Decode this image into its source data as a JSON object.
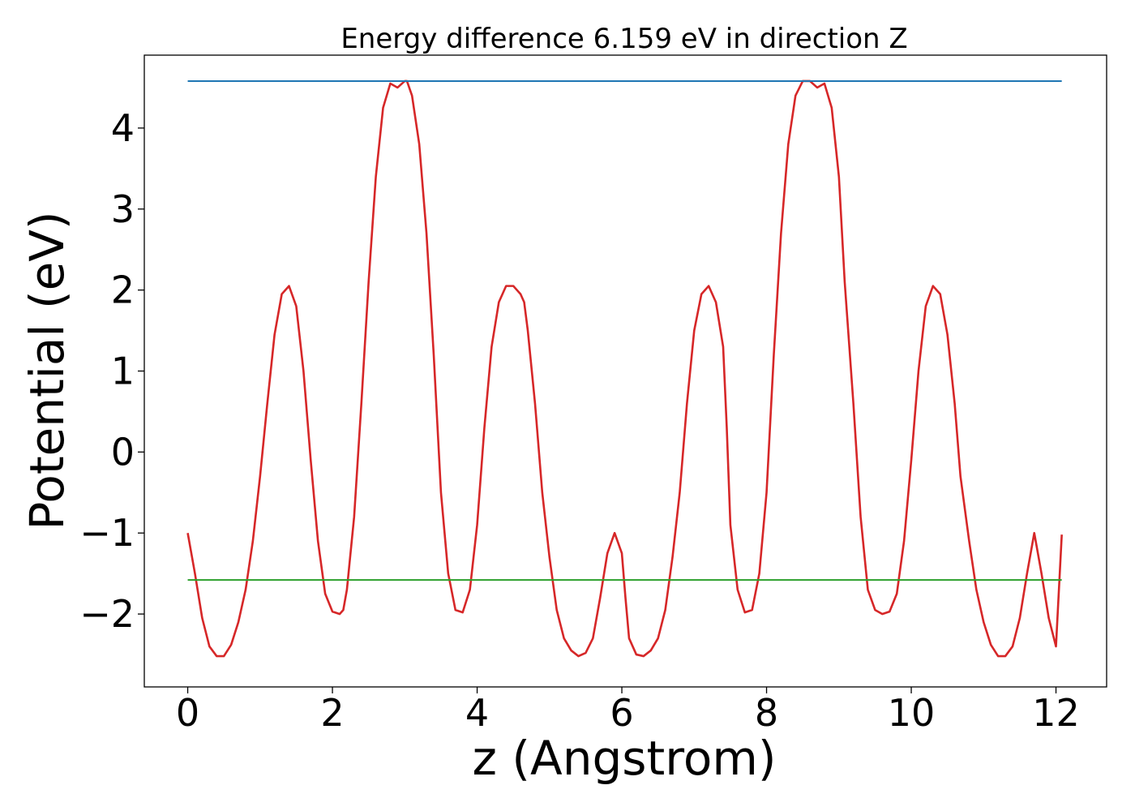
{
  "chart_data": {
    "type": "line",
    "title": "Energy difference 6.159 eV in direction Z",
    "xlabel": "z (Angstrom)",
    "ylabel": "Potential (eV)",
    "xlim": [
      -0.6,
      12.7
    ],
    "ylim": [
      -2.9,
      4.9
    ],
    "xticks": [
      0,
      2,
      4,
      6,
      8,
      10,
      12
    ],
    "xtick_labels": [
      "0",
      "2",
      "4",
      "6",
      "8",
      "10",
      "12"
    ],
    "yticks": [
      -2,
      -1,
      0,
      1,
      2,
      3,
      4
    ],
    "ytick_labels": [
      "−2",
      "−1",
      "0",
      "1",
      "2",
      "3",
      "4"
    ],
    "grid": false,
    "series": [
      {
        "color": "#d62728",
        "x": [
          0.0,
          0.1,
          0.2,
          0.3,
          0.4,
          0.5,
          0.6,
          0.7,
          0.8,
          0.9,
          1.0,
          1.1,
          1.2,
          1.3,
          1.4,
          1.5,
          1.6,
          1.7,
          1.8,
          1.9,
          2.0,
          2.1,
          2.15,
          2.2,
          2.3,
          2.4,
          2.5,
          2.6,
          2.7,
          2.8,
          2.9,
          3.0,
          3.03,
          3.1,
          3.2,
          3.3,
          3.4,
          3.5,
          3.6,
          3.7,
          3.8,
          3.9,
          4.0,
          4.1,
          4.2,
          4.3,
          4.4,
          4.5,
          4.6,
          4.65,
          4.7,
          4.8,
          4.9,
          5.0,
          5.1,
          5.2,
          5.3,
          5.4,
          5.5,
          5.6,
          5.7,
          5.8,
          5.9,
          6.0,
          6.05,
          6.1,
          6.2,
          6.3,
          6.4,
          6.5,
          6.6,
          6.7,
          6.8,
          6.9,
          7.0,
          7.1,
          7.2,
          7.3,
          7.4,
          7.45,
          7.5,
          7.6,
          7.7,
          7.8,
          7.9,
          8.0,
          8.1,
          8.2,
          8.3,
          8.4,
          8.5,
          8.6,
          8.7,
          8.8,
          8.9,
          9.0,
          9.08,
          9.2,
          9.3,
          9.4,
          9.5,
          9.6,
          9.7,
          9.8,
          9.9,
          10.0,
          10.1,
          10.2,
          10.3,
          10.4,
          10.5,
          10.6,
          10.68,
          10.8,
          10.9,
          11.0,
          11.1,
          11.2,
          11.3,
          11.4,
          11.5,
          11.6,
          11.7,
          11.8,
          11.9,
          12.0,
          12.08
        ],
        "y": [
          -1.0,
          -1.5,
          -2.05,
          -2.4,
          -2.52,
          -2.52,
          -2.38,
          -2.1,
          -1.7,
          -1.1,
          -0.3,
          0.6,
          1.45,
          1.95,
          2.05,
          1.8,
          1.0,
          -0.1,
          -1.1,
          -1.75,
          -1.97,
          -2.0,
          -1.95,
          -1.7,
          -0.8,
          0.6,
          2.1,
          3.4,
          4.25,
          4.55,
          4.5,
          4.58,
          4.58,
          4.4,
          3.8,
          2.7,
          1.2,
          -0.5,
          -1.5,
          -1.95,
          -1.98,
          -1.7,
          -0.9,
          0.3,
          1.3,
          1.85,
          2.05,
          2.05,
          1.95,
          1.85,
          1.5,
          0.6,
          -0.5,
          -1.3,
          -1.95,
          -2.3,
          -2.45,
          -2.52,
          -2.48,
          -2.3,
          -1.8,
          -1.25,
          -1.0,
          -1.25,
          -1.8,
          -2.3,
          -2.5,
          -2.52,
          -2.45,
          -2.3,
          -1.95,
          -1.3,
          -0.5,
          0.6,
          1.5,
          1.95,
          2.05,
          1.85,
          1.3,
          0.3,
          -0.9,
          -1.7,
          -1.98,
          -1.95,
          -1.5,
          -0.5,
          1.2,
          2.7,
          3.8,
          4.4,
          4.58,
          4.58,
          4.5,
          4.55,
          4.25,
          3.4,
          2.1,
          0.6,
          -0.8,
          -1.7,
          -1.95,
          -2.0,
          -1.97,
          -1.75,
          -1.1,
          -0.1,
          1.0,
          1.8,
          2.05,
          1.95,
          1.45,
          0.6,
          -0.3,
          -1.1,
          -1.7,
          -2.1,
          -2.38,
          -2.52,
          -2.52,
          -2.4,
          -2.05,
          -1.5,
          -1.0,
          -1.5,
          -2.05,
          -2.4,
          -1.02
        ]
      },
      {
        "color": "#1f77b4",
        "x": [
          0.0,
          12.08
        ],
        "y": [
          4.58,
          4.58
        ]
      },
      {
        "color": "#2ca02c",
        "x": [
          0.0,
          12.08
        ],
        "y": [
          -1.58,
          -1.58
        ]
      }
    ]
  }
}
